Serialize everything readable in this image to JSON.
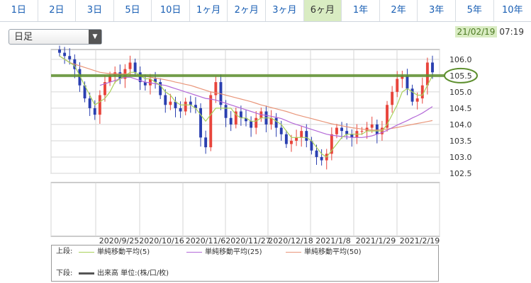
{
  "tabs": [
    {
      "label": "1日"
    },
    {
      "label": "2日"
    },
    {
      "label": "3日"
    },
    {
      "label": "5日"
    },
    {
      "label": "10日"
    },
    {
      "label": "1ヶ月"
    },
    {
      "label": "2ヶ月"
    },
    {
      "label": "3ヶ月"
    },
    {
      "label": "6ヶ月",
      "active": true
    },
    {
      "label": "1年"
    },
    {
      "label": "2年"
    },
    {
      "label": "3年"
    },
    {
      "label": "5年"
    },
    {
      "label": "10年"
    }
  ],
  "selector": {
    "value": "日足"
  },
  "timestamp": {
    "date": "21/02/19",
    "time": "07:19"
  },
  "colors": {
    "up": "#e8453c",
    "down": "#2a3fb0",
    "ma5": "#a9d15a",
    "ma25": "#b469d8",
    "ma50": "#e9967a",
    "highlight": "#5d8f2e"
  },
  "legend": {
    "upper": "上段:",
    "lower": "下段:",
    "items": [
      {
        "label": "単純移動平均(5)",
        "color": "#a9d15a"
      },
      {
        "label": "単純移動平均(25)",
        "color": "#b469d8"
      },
      {
        "label": "単純移動平均(50)",
        "color": "#e9967a"
      }
    ],
    "volume_label": "出来高 単位:(株/口/枚)",
    "volume_color": "#555555"
  },
  "chart_data": {
    "type": "candlestick",
    "ylim": [
      102.5,
      106.3
    ],
    "y_ticks": [
      "106.0",
      "105.5",
      "105.0",
      "104.5",
      "104.0",
      "103.5",
      "103.0",
      "102.5"
    ],
    "x_ticks": [
      "2020/9/25",
      "2020/10/16",
      "2020/11/6",
      "2020/11/27",
      "2020/12/18",
      "2021/1/8",
      "2021/1/29",
      "2021/2/19"
    ],
    "highlight_level": 105.5,
    "highlight_label": "105.5",
    "close": [
      106.2,
      106.1,
      106.0,
      105.7,
      105.2,
      104.8,
      104.5,
      104.3,
      104.9,
      105.3,
      105.5,
      105.6,
      105.4,
      105.7,
      105.9,
      105.6,
      105.3,
      105.2,
      105.4,
      105.3,
      104.9,
      104.6,
      104.7,
      104.5,
      104.4,
      104.7,
      104.6,
      104.5,
      103.6,
      103.3,
      104.9,
      105.3,
      104.6,
      104.2,
      104.0,
      104.4,
      104.2,
      104.1,
      103.9,
      104.2,
      104.4,
      104.0,
      104.2,
      103.9,
      103.7,
      103.4,
      103.5,
      103.6,
      103.8,
      103.5,
      103.2,
      103.0,
      102.9,
      103.1,
      103.7,
      103.9,
      103.8,
      103.7,
      103.6,
      103.8,
      103.8,
      103.9,
      104.0,
      103.7,
      103.9,
      104.6,
      105.0,
      105.4,
      105.5,
      105.1,
      104.7,
      104.8,
      105.2,
      105.9,
      105.6
    ],
    "ma5": [
      106.1,
      106.0,
      105.9,
      105.8,
      105.5,
      105.2,
      104.9,
      104.6,
      104.7,
      104.8,
      105.0,
      105.3,
      105.4,
      105.5,
      105.6,
      105.6,
      105.5,
      105.4,
      105.4,
      105.3,
      105.2,
      105.0,
      104.9,
      104.7,
      104.6,
      104.6,
      104.6,
      104.5,
      104.3,
      104.1,
      104.3,
      104.5,
      104.5,
      104.5,
      104.5,
      104.3,
      104.2,
      104.2,
      104.1,
      104.1,
      104.2,
      104.2,
      104.2,
      104.1,
      104.0,
      103.8,
      103.6,
      103.6,
      103.6,
      103.6,
      103.5,
      103.3,
      103.1,
      103.0,
      103.2,
      103.4,
      103.6,
      103.7,
      103.7,
      103.7,
      103.7,
      103.8,
      103.8,
      103.8,
      103.8,
      104.0,
      104.3,
      104.6,
      105.0,
      105.1,
      105.0,
      104.9,
      104.9,
      105.2,
      105.5
    ],
    "ma25": [
      null,
      null,
      null,
      null,
      null,
      null,
      null,
      null,
      105.2,
      105.25,
      105.3,
      105.35,
      105.4,
      105.45,
      105.45,
      105.4,
      105.35,
      105.3,
      105.28,
      105.25,
      105.22,
      105.2,
      105.15,
      105.1,
      105.05,
      105.0,
      104.95,
      104.9,
      104.85,
      104.8,
      104.78,
      104.75,
      104.7,
      104.65,
      104.6,
      104.55,
      104.5,
      104.45,
      104.4,
      104.35,
      104.3,
      104.28,
      104.25,
      104.22,
      104.18,
      104.12,
      104.05,
      104.0,
      103.95,
      103.9,
      103.85,
      103.8,
      103.75,
      103.7,
      103.67,
      103.65,
      103.63,
      103.62,
      103.6,
      103.6,
      103.6,
      103.62,
      103.65,
      103.7,
      103.75,
      103.82,
      103.9,
      103.98,
      104.05,
      104.12,
      104.2,
      104.27,
      104.35,
      104.45,
      104.55
    ],
    "ma50": [
      106.1,
      106.0,
      105.9,
      105.85,
      105.8,
      105.75,
      105.7,
      105.65,
      105.6,
      105.58,
      105.56,
      105.55,
      105.55,
      105.55,
      105.54,
      105.52,
      105.5,
      105.48,
      105.45,
      105.42,
      105.4,
      105.37,
      105.34,
      105.3,
      105.27,
      105.23,
      105.2,
      105.15,
      105.1,
      105.05,
      105.0,
      104.97,
      104.94,
      104.9,
      104.86,
      104.82,
      104.78,
      104.74,
      104.7,
      104.65,
      104.6,
      104.56,
      104.52,
      104.48,
      104.44,
      104.4,
      104.35,
      104.3,
      104.26,
      104.22,
      104.18,
      104.14,
      104.1,
      104.06,
      104.02,
      103.99,
      103.96,
      103.93,
      103.9,
      103.88,
      103.86,
      103.84,
      103.83,
      103.83,
      103.84,
      103.86,
      103.88,
      103.91,
      103.94,
      103.97,
      104.0,
      104.03,
      104.06,
      104.09,
      104.12
    ]
  }
}
